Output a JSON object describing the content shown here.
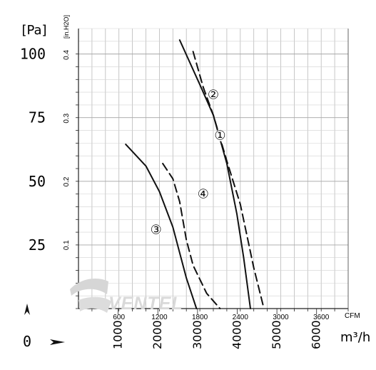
{
  "chart_data": {
    "type": "line",
    "units": {
      "pressure": "[Pa]",
      "pressure_alt": "[in.H2O]",
      "flow_alt": "CFM",
      "flow": "m³/h"
    },
    "y_pa_ticks": [
      "0",
      "25",
      "50",
      "75",
      "100"
    ],
    "y_inh2o_ticks": [
      "0.1",
      "0.2",
      "0.3",
      "0.4"
    ],
    "x_cfm_ticks": [
      "600",
      "1200",
      "1800",
      "2400",
      "3000",
      "3600"
    ],
    "x_m3h_ticks": [
      "1000",
      "2000",
      "3000",
      "4000",
      "5000",
      "6000"
    ],
    "xlim_cfm": [
      0,
      4000
    ],
    "ylim_pa": [
      0,
      110
    ],
    "grid": true,
    "watermark": "VENTEL",
    "series": [
      {
        "name": "①",
        "style": "solid",
        "points": [
          [
            1500,
            105.5
          ],
          [
            1800,
            88
          ],
          [
            2000,
            76
          ],
          [
            2200,
            57
          ],
          [
            2350,
            37
          ],
          [
            2450,
            20
          ],
          [
            2550,
            0
          ]
        ]
      },
      {
        "name": "②",
        "style": "dashed",
        "points": [
          [
            1700,
            101
          ],
          [
            1850,
            87
          ],
          [
            2000,
            76
          ],
          [
            2200,
            58
          ],
          [
            2400,
            41
          ],
          [
            2600,
            16
          ],
          [
            2750,
            0
          ]
        ]
      },
      {
        "name": "③",
        "style": "solid",
        "points": [
          [
            700,
            64.5
          ],
          [
            1000,
            56
          ],
          [
            1200,
            46
          ],
          [
            1400,
            32
          ],
          [
            1600,
            12
          ],
          [
            1750,
            0
          ]
        ]
      },
      {
        "name": "④",
        "style": "dashed",
        "points": [
          [
            1250,
            57
          ],
          [
            1400,
            51
          ],
          [
            1500,
            42
          ],
          [
            1600,
            27
          ],
          [
            1700,
            17
          ],
          [
            1900,
            6
          ],
          [
            2100,
            0
          ]
        ]
      }
    ]
  }
}
